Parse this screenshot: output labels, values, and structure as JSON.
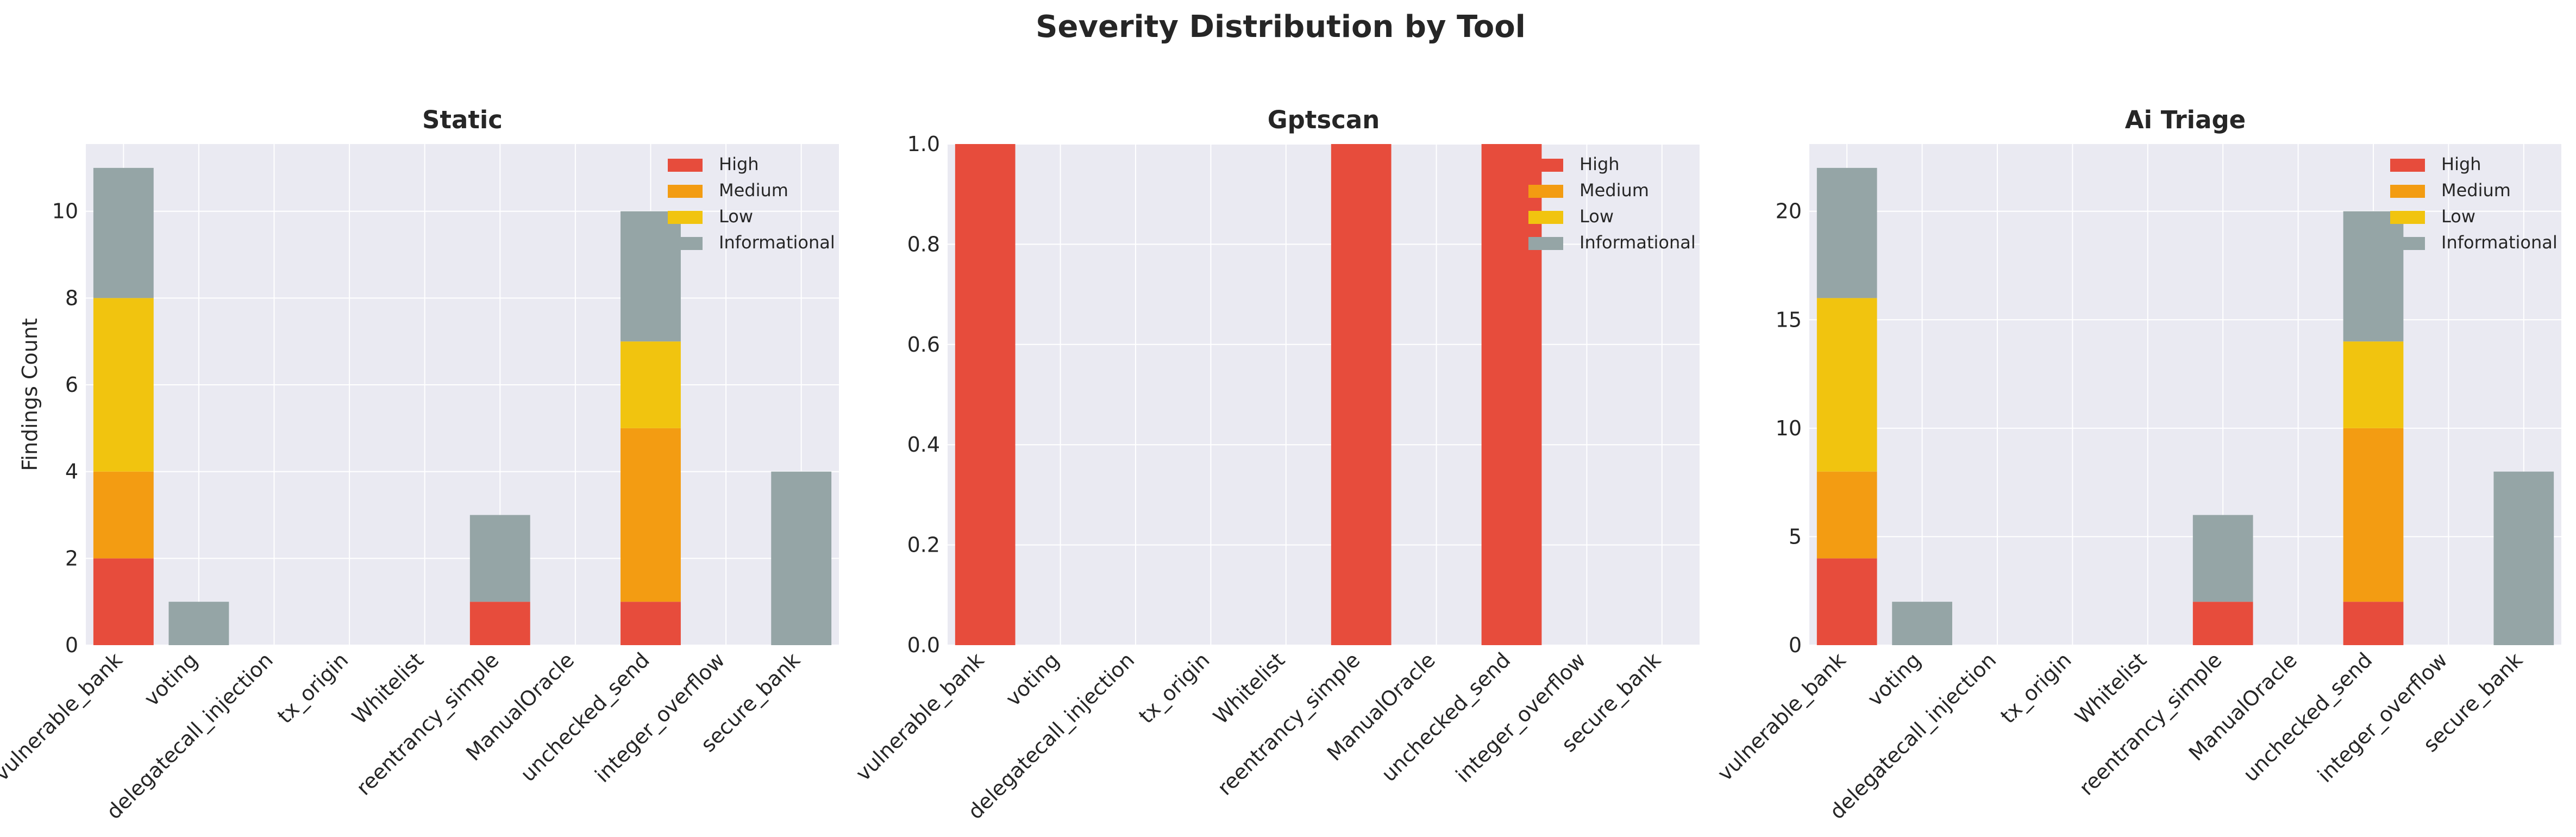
{
  "figure_title": "Severity Distribution by Tool",
  "colors": {
    "High": "#e74c3c",
    "Medium": "#f39c12",
    "Low": "#f1c40f",
    "Informational": "#95a5a6",
    "panel_bg": "#eaeaf2",
    "grid": "#ffffff"
  },
  "chart_data": [
    {
      "type": "bar",
      "stacked": true,
      "title": "Static",
      "ylabel": "Findings Count",
      "xlabel": "",
      "ylim": [
        0,
        11.55
      ],
      "yticks": [
        0,
        2,
        4,
        6,
        8,
        10
      ],
      "ytick_labels": [
        "0",
        "2",
        "4",
        "6",
        "8",
        "10"
      ],
      "legend_position": "top-right",
      "categories": [
        "vulnerable_bank",
        "voting",
        "delegatecall_injection",
        "tx_origin",
        "Whitelist",
        "reentrancy_simple",
        "ManualOracle",
        "unchecked_send",
        "integer_overflow",
        "secure_bank"
      ],
      "series": [
        {
          "name": "High",
          "values": [
            2,
            0,
            0,
            0,
            0,
            1,
            0,
            1,
            0,
            0
          ]
        },
        {
          "name": "Medium",
          "values": [
            2,
            0,
            0,
            0,
            0,
            0,
            0,
            4,
            0,
            0
          ]
        },
        {
          "name": "Low",
          "values": [
            4,
            0,
            0,
            0,
            0,
            0,
            0,
            2,
            0,
            0
          ]
        },
        {
          "name": "Informational",
          "values": [
            3,
            1,
            0,
            0,
            0,
            2,
            0,
            3,
            0,
            4
          ]
        }
      ]
    },
    {
      "type": "bar",
      "stacked": true,
      "title": "Gptscan",
      "ylabel": "",
      "xlabel": "",
      "ylim": [
        0,
        1.0
      ],
      "yticks": [
        0,
        0.2,
        0.4,
        0.6,
        0.8,
        1.0
      ],
      "ytick_labels": [
        "0.0",
        "0.2",
        "0.4",
        "0.6",
        "0.8",
        "1.0"
      ],
      "legend_position": "top-right",
      "categories": [
        "vulnerable_bank",
        "voting",
        "delegatecall_injection",
        "tx_origin",
        "Whitelist",
        "reentrancy_simple",
        "ManualOracle",
        "unchecked_send",
        "integer_overflow",
        "secure_bank"
      ],
      "series": [
        {
          "name": "High",
          "values": [
            1,
            0,
            0,
            0,
            0,
            1,
            0,
            1,
            0,
            0
          ]
        },
        {
          "name": "Medium",
          "values": [
            0,
            0,
            0,
            0,
            0,
            0,
            0,
            0,
            0,
            0
          ]
        },
        {
          "name": "Low",
          "values": [
            0,
            0,
            0,
            0,
            0,
            0,
            0,
            0,
            0,
            0
          ]
        },
        {
          "name": "Informational",
          "values": [
            0,
            0,
            0,
            0,
            0,
            0,
            0,
            0,
            0,
            0
          ]
        }
      ]
    },
    {
      "type": "bar",
      "stacked": true,
      "title": "Ai Triage",
      "ylabel": "",
      "xlabel": "",
      "ylim": [
        0,
        23.1
      ],
      "yticks": [
        0,
        5,
        10,
        15,
        20
      ],
      "ytick_labels": [
        "0",
        "5",
        "10",
        "15",
        "20"
      ],
      "legend_position": "top-right",
      "categories": [
        "vulnerable_bank",
        "voting",
        "delegatecall_injection",
        "tx_origin",
        "Whitelist",
        "reentrancy_simple",
        "ManualOracle",
        "unchecked_send",
        "integer_overflow",
        "secure_bank"
      ],
      "series": [
        {
          "name": "High",
          "values": [
            4,
            0,
            0,
            0,
            0,
            2,
            0,
            2,
            0,
            0
          ]
        },
        {
          "name": "Medium",
          "values": [
            4,
            0,
            0,
            0,
            0,
            0,
            0,
            8,
            0,
            0
          ]
        },
        {
          "name": "Low",
          "values": [
            8,
            0,
            0,
            0,
            0,
            0,
            0,
            4,
            0,
            0
          ]
        },
        {
          "name": "Informational",
          "values": [
            6,
            2,
            0,
            0,
            0,
            4,
            0,
            6,
            0,
            8
          ]
        }
      ]
    }
  ]
}
